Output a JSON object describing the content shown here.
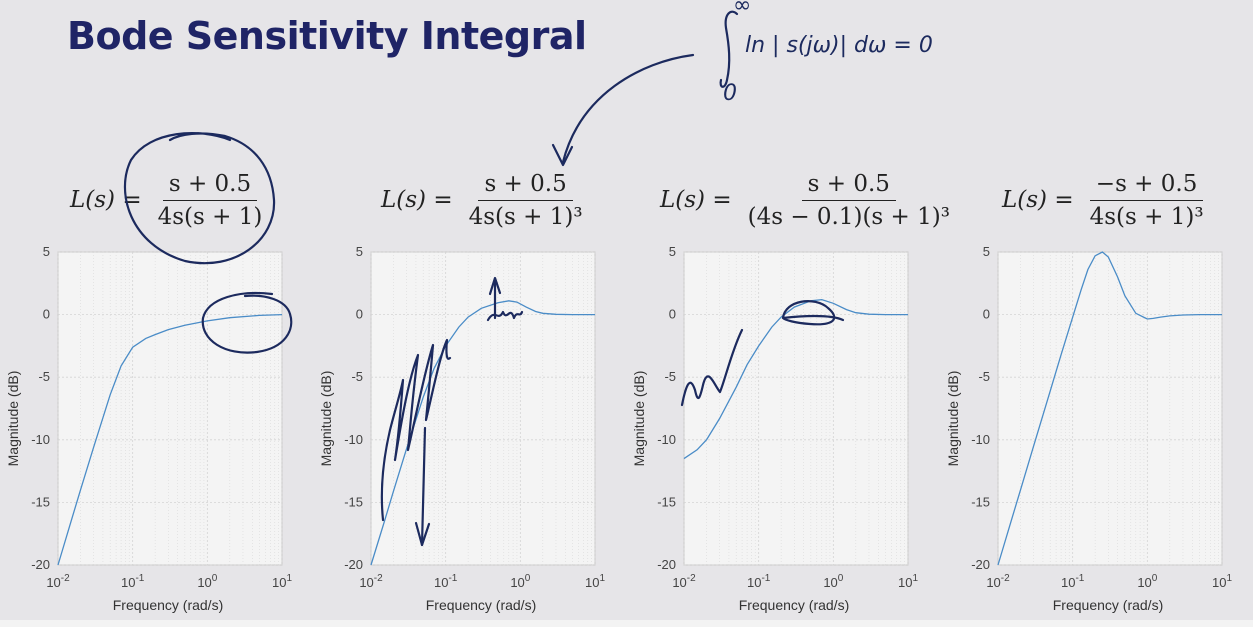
{
  "slide": {
    "title": "Bode Sensitivity Integral",
    "note": "ln | s(jω)| dω = 0",
    "note_upper": "∞",
    "note_lower": "0"
  },
  "formulas": [
    {
      "lhs": "L(s) =",
      "num": "s + 0.5",
      "den": "4s(s + 1)"
    },
    {
      "lhs": "L(s) =",
      "num": "s + 0.5",
      "den": "4s(s + 1)³"
    },
    {
      "lhs": "L(s) =",
      "num": "s + 0.5",
      "den": "(4s − 0.1)(s + 1)³"
    },
    {
      "lhs": "L(s) =",
      "num": "−s + 0.5",
      "den": "4s(s + 1)³"
    }
  ],
  "chart_data": [
    {
      "type": "line",
      "xlabel": "Frequency  (rad/s)",
      "ylabel": "Magnitude (dB)",
      "xscale": "log",
      "xlim": [
        0.01,
        10
      ],
      "ylim": [
        -20,
        5
      ],
      "xticks": [
        {
          "v": 0.01,
          "b": "10",
          "e": "-2"
        },
        {
          "v": 0.1,
          "b": "10",
          "e": "-1"
        },
        {
          "v": 1,
          "b": "10",
          "e": "0"
        },
        {
          "v": 10,
          "b": "10",
          "e": "1"
        }
      ],
      "yticks": [
        5,
        0,
        -5,
        -10,
        -15,
        -20
      ],
      "grid": true,
      "series": [
        {
          "color": "#4a8cc7",
          "x": [
            0.01,
            0.015,
            0.02,
            0.03,
            0.05,
            0.07,
            0.1,
            0.15,
            0.2,
            0.3,
            0.5,
            1,
            2,
            5,
            10
          ],
          "y": [
            -20,
            -16.5,
            -14,
            -10.6,
            -6.4,
            -4.1,
            -2.6,
            -1.9,
            -1.6,
            -1.2,
            -0.85,
            -0.5,
            -0.25,
            -0.06,
            0
          ]
        }
      ]
    },
    {
      "type": "line",
      "xlabel": "Frequency  (rad/s)",
      "ylabel": "Magnitude (dB)",
      "xscale": "log",
      "xlim": [
        0.01,
        10
      ],
      "ylim": [
        -20,
        5
      ],
      "xticks": [
        {
          "v": 0.01,
          "b": "10",
          "e": "-2"
        },
        {
          "v": 0.1,
          "b": "10",
          "e": "-1"
        },
        {
          "v": 1,
          "b": "10",
          "e": "0"
        },
        {
          "v": 10,
          "b": "10",
          "e": "1"
        }
      ],
      "yticks": [
        5,
        0,
        -5,
        -10,
        -15,
        -20
      ],
      "grid": true,
      "series": [
        {
          "color": "#4a8cc7",
          "x": [
            0.01,
            0.015,
            0.02,
            0.03,
            0.05,
            0.07,
            0.1,
            0.15,
            0.2,
            0.3,
            0.5,
            0.7,
            0.9,
            1.2,
            1.6,
            2,
            3,
            5,
            10
          ],
          "y": [
            -20,
            -16.6,
            -14.1,
            -10.7,
            -6.6,
            -4.3,
            -2.5,
            -1,
            -0.2,
            0.5,
            0.95,
            1.1,
            1,
            0.6,
            0.25,
            0.1,
            0.02,
            0,
            0
          ]
        }
      ]
    },
    {
      "type": "line",
      "xlabel": "Frequency  (rad/s)",
      "ylabel": "Magnitude (dB)",
      "xscale": "log",
      "xlim": [
        0.01,
        10
      ],
      "ylim": [
        -20,
        5
      ],
      "xticks": [
        {
          "v": 0.01,
          "b": "10",
          "e": "-2"
        },
        {
          "v": 0.1,
          "b": "10",
          "e": "-1"
        },
        {
          "v": 1,
          "b": "10",
          "e": "0"
        },
        {
          "v": 10,
          "b": "10",
          "e": "1"
        }
      ],
      "yticks": [
        5,
        0,
        -5,
        -10,
        -15,
        -20
      ],
      "grid": true,
      "series": [
        {
          "color": "#4a8cc7",
          "x": [
            0.01,
            0.015,
            0.02,
            0.03,
            0.05,
            0.07,
            0.1,
            0.15,
            0.2,
            0.3,
            0.5,
            0.7,
            1,
            1.5,
            2,
            3,
            5,
            10
          ],
          "y": [
            -11.5,
            -10.8,
            -10,
            -8.3,
            -5.8,
            -4,
            -2.5,
            -1,
            -0.2,
            0.6,
            1.1,
            1.2,
            0.9,
            0.4,
            0.15,
            0.03,
            0,
            0
          ]
        }
      ]
    },
    {
      "type": "line",
      "xlabel": "Frequency  (rad/s)",
      "ylabel": "Magnitude (dB)",
      "xscale": "log",
      "xlim": [
        0.01,
        10
      ],
      "ylim": [
        -20,
        5
      ],
      "xticks": [
        {
          "v": 0.01,
          "b": "10",
          "e": "-2"
        },
        {
          "v": 0.1,
          "b": "10",
          "e": "-1"
        },
        {
          "v": 1,
          "b": "10",
          "e": "0"
        },
        {
          "v": 10,
          "b": "10",
          "e": "1"
        }
      ],
      "yticks": [
        5,
        0,
        -5,
        -10,
        -15,
        -20
      ],
      "grid": true,
      "series": [
        {
          "color": "#4a8cc7",
          "x": [
            0.01,
            0.015,
            0.02,
            0.03,
            0.05,
            0.07,
            0.1,
            0.13,
            0.16,
            0.2,
            0.25,
            0.3,
            0.4,
            0.5,
            0.7,
            1,
            1.2,
            1.5,
            2,
            3,
            5,
            10
          ],
          "y": [
            -20,
            -16.5,
            -14,
            -10.5,
            -6.1,
            -3.2,
            -0.2,
            2,
            3.6,
            4.7,
            5,
            4.6,
            3,
            1.5,
            0.1,
            -0.35,
            -0.3,
            -0.2,
            -0.1,
            -0.03,
            0,
            0
          ]
        }
      ]
    }
  ]
}
